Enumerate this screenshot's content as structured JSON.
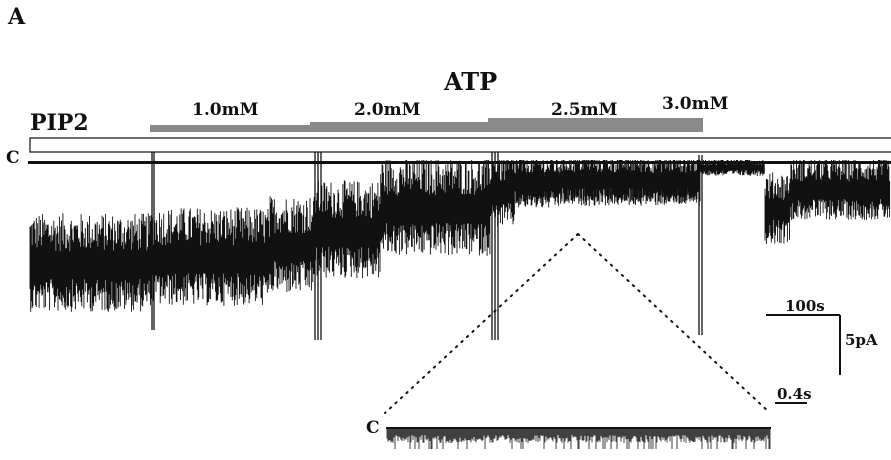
{
  "figure": {
    "panel_label": "A",
    "application_label": "PIP2",
    "drug_label": "ATP",
    "closed_level_label": "C",
    "concentrations": [
      "1.0mM",
      "2.0mM",
      "2.5mM",
      "3.0mM"
    ],
    "scale_bars": {
      "time_main": "100s",
      "current": "5pA",
      "time_inset": "0.4s"
    },
    "inset_closed_level_label": "C"
  },
  "colors": {
    "trace": "#111111",
    "atp_bar": "#8a8a8a",
    "background": "#ffffff"
  }
}
